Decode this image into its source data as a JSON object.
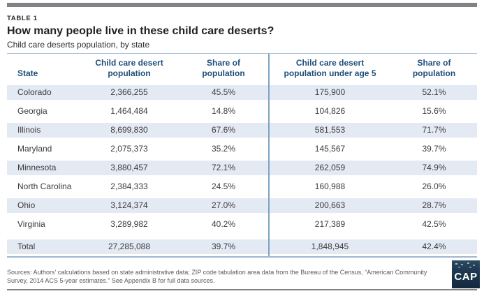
{
  "colors": {
    "accent_navy": "#1e4d7b",
    "row_shade_blue": "#e4eaf4",
    "column_divider_blue": "#7da3c1",
    "rule_gray": "#808285",
    "logo_navy": "#1d3850"
  },
  "header": {
    "table_label": "TABLE 1",
    "title": "How many people live in these child care deserts?",
    "subtitle": "Child care deserts population, by state"
  },
  "table": {
    "columns": [
      "State",
      "Child care desert population",
      "Share of population",
      "Child care desert population under age 5",
      "Share of population"
    ],
    "rows": [
      {
        "state": "Colorado",
        "ccd_pop": "2,366,255",
        "share": "45.5%",
        "ccd_pop_u5": "175,900",
        "share_u5": "52.1%"
      },
      {
        "state": "Georgia",
        "ccd_pop": "1,464,484",
        "share": "14.8%",
        "ccd_pop_u5": "104,826",
        "share_u5": "15.6%"
      },
      {
        "state": "Illinois",
        "ccd_pop": "8,699,830",
        "share": "67.6%",
        "ccd_pop_u5": "581,553",
        "share_u5": "71.7%"
      },
      {
        "state": "Maryland",
        "ccd_pop": "2,075,373",
        "share": "35.2%",
        "ccd_pop_u5": "145,567",
        "share_u5": "39.7%"
      },
      {
        "state": "Minnesota",
        "ccd_pop": "3,880,457",
        "share": "72.1%",
        "ccd_pop_u5": "262,059",
        "share_u5": "74.9%"
      },
      {
        "state": "North Carolina",
        "ccd_pop": "2,384,333",
        "share": "24.5%",
        "ccd_pop_u5": "160,988",
        "share_u5": "26.0%"
      },
      {
        "state": "Ohio",
        "ccd_pop": "3,124,374",
        "share": "27.0%",
        "ccd_pop_u5": "200,663",
        "share_u5": "28.7%"
      },
      {
        "state": "Virginia",
        "ccd_pop": "3,289,982",
        "share": "40.2%",
        "ccd_pop_u5": "217,389",
        "share_u5": "42.5%"
      }
    ],
    "total_row": {
      "state": "Total",
      "ccd_pop": "27,285,088",
      "share": "39.7%",
      "ccd_pop_u5": "1,848,945",
      "share_u5": "42.4%"
    }
  },
  "footer": {
    "sources": "Sources: Authors’ calculations based on state administrative data; ZIP code tabulation area data from the Bureau of the Census, “American Community Survey, 2014 ACS 5-year estimates.” See Appendix B for full data sources.",
    "logo_text": "CAP"
  }
}
